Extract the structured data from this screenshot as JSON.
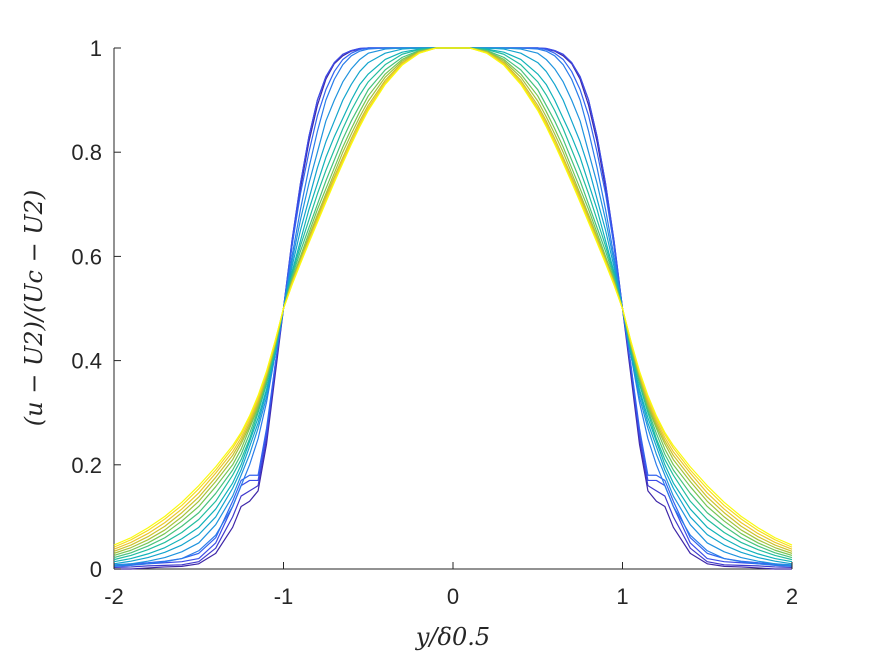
{
  "chart_data": {
    "type": "line",
    "title": "",
    "xlabel": "y/δ0.5",
    "ylabel": "(u − U2)/(Uc − U2)",
    "xlim": [
      -2,
      2
    ],
    "ylim": [
      0,
      1
    ],
    "xticks": [
      "-2",
      "-1",
      "0",
      "1",
      "2"
    ],
    "yticks": [
      "0",
      "0.2",
      "0.4",
      "0.6",
      "0.8",
      "1"
    ],
    "xtick_values": [
      -2,
      -1,
      0,
      1,
      2
    ],
    "ytick_values": [
      0,
      0.2,
      0.4,
      0.6,
      0.8,
      1
    ],
    "grid": false,
    "legend": "none",
    "colormap": "parula",
    "colormap_stops": [
      "#3e26a8",
      "#4145e4",
      "#2f6cf2",
      "#1f93de",
      "#0bafc1",
      "#28c097",
      "#75c554",
      "#c3c02b",
      "#f5c92d",
      "#f9fb0e"
    ],
    "x": [
      -2,
      -1.9,
      -1.8,
      -1.7,
      -1.6,
      -1.5,
      -1.4,
      -1.3,
      -1.25,
      -1.2,
      -1.15,
      -1.1,
      -1.05,
      -1,
      -0.95,
      -0.9,
      -0.85,
      -0.8,
      -0.75,
      -0.7,
      -0.65,
      -0.6,
      -0.55,
      -0.5,
      -0.4,
      -0.3,
      -0.2,
      -0.1,
      0,
      0.1,
      0.2,
      0.3,
      0.4,
      0.5,
      0.55,
      0.6,
      0.65,
      0.7,
      0.75,
      0.8,
      0.85,
      0.9,
      0.95,
      1,
      1.05,
      1.1,
      1.15,
      1.2,
      1.25,
      1.3,
      1.4,
      1.5,
      1.6,
      1.7,
      1.8,
      1.9,
      2
    ],
    "series": [
      {
        "values": [
          0,
          0,
          0.002,
          0.004,
          0.005,
          0.01,
          0.03,
          0.08,
          0.12,
          0.13,
          0.15,
          0.24,
          0.37,
          0.5,
          0.62,
          0.73,
          0.82,
          0.89,
          0.94,
          0.97,
          0.985,
          0.994,
          0.998,
          1,
          1,
          1,
          1,
          1,
          1,
          1,
          1,
          1,
          1,
          1,
          0.998,
          0.994,
          0.985,
          0.97,
          0.94,
          0.89,
          0.82,
          0.73,
          0.62,
          0.5,
          0.37,
          0.24,
          0.15,
          0.13,
          0.12,
          0.08,
          0.03,
          0.01,
          0.005,
          0.004,
          0.002,
          0,
          0
        ]
      },
      {
        "values": [
          0.003,
          0.004,
          0.006,
          0.007,
          0.008,
          0.014,
          0.04,
          0.1,
          0.14,
          0.15,
          0.16,
          0.25,
          0.38,
          0.5,
          0.63,
          0.74,
          0.83,
          0.9,
          0.945,
          0.972,
          0.988,
          0.995,
          0.999,
          1,
          1,
          1,
          1,
          1,
          1,
          1,
          1,
          1,
          1,
          1,
          0.999,
          0.995,
          0.988,
          0.972,
          0.945,
          0.9,
          0.83,
          0.74,
          0.63,
          0.5,
          0.38,
          0.25,
          0.16,
          0.15,
          0.14,
          0.1,
          0.04,
          0.014,
          0.008,
          0.007,
          0.006,
          0.004,
          0.003
        ]
      },
      {
        "values": [
          0.006,
          0.008,
          0.01,
          0.012,
          0.014,
          0.02,
          0.05,
          0.12,
          0.16,
          0.17,
          0.17,
          0.26,
          0.39,
          0.5,
          0.63,
          0.74,
          0.83,
          0.9,
          0.945,
          0.972,
          0.988,
          0.995,
          0.999,
          1,
          1,
          1,
          1,
          1,
          1,
          1,
          1,
          1,
          1,
          1,
          0.999,
          0.995,
          0.988,
          0.972,
          0.945,
          0.9,
          0.83,
          0.74,
          0.63,
          0.5,
          0.39,
          0.26,
          0.17,
          0.17,
          0.16,
          0.12,
          0.05,
          0.02,
          0.014,
          0.012,
          0.01,
          0.008,
          0.006
        ]
      },
      {
        "values": [
          0.008,
          0.01,
          0.012,
          0.015,
          0.02,
          0.03,
          0.06,
          0.13,
          0.17,
          0.18,
          0.18,
          0.27,
          0.39,
          0.5,
          0.62,
          0.72,
          0.8,
          0.87,
          0.92,
          0.955,
          0.978,
          0.99,
          0.997,
          1,
          1,
          1,
          1,
          1,
          1,
          1,
          1,
          1,
          1,
          1,
          0.997,
          0.99,
          0.978,
          0.955,
          0.92,
          0.87,
          0.8,
          0.72,
          0.62,
          0.5,
          0.39,
          0.27,
          0.18,
          0.18,
          0.17,
          0.13,
          0.06,
          0.03,
          0.02,
          0.015,
          0.012,
          0.01,
          0.008
        ]
      },
      {
        "values": [
          0.005,
          0.007,
          0.01,
          0.014,
          0.02,
          0.035,
          0.065,
          0.12,
          0.16,
          0.2,
          0.25,
          0.32,
          0.41,
          0.5,
          0.6,
          0.69,
          0.77,
          0.84,
          0.9,
          0.94,
          0.968,
          0.985,
          0.994,
          0.998,
          1,
          1,
          1,
          1,
          1,
          1,
          1,
          1,
          1,
          0.998,
          0.994,
          0.985,
          0.968,
          0.94,
          0.9,
          0.84,
          0.77,
          0.69,
          0.6,
          0.5,
          0.41,
          0.32,
          0.25,
          0.2,
          0.16,
          0.12,
          0.065,
          0.035,
          0.02,
          0.014,
          0.01,
          0.007,
          0.005
        ]
      },
      {
        "values": [
          0.007,
          0.01,
          0.015,
          0.022,
          0.033,
          0.05,
          0.085,
          0.14,
          0.18,
          0.22,
          0.27,
          0.33,
          0.41,
          0.5,
          0.59,
          0.67,
          0.74,
          0.8,
          0.86,
          0.9,
          0.935,
          0.96,
          0.978,
          0.99,
          0.998,
          1,
          1,
          1,
          1,
          1,
          1,
          1,
          0.998,
          0.99,
          0.978,
          0.96,
          0.935,
          0.9,
          0.86,
          0.8,
          0.74,
          0.67,
          0.59,
          0.5,
          0.41,
          0.33,
          0.27,
          0.22,
          0.18,
          0.14,
          0.085,
          0.05,
          0.033,
          0.022,
          0.015,
          0.01,
          0.007
        ]
      },
      {
        "values": [
          0.01,
          0.015,
          0.022,
          0.032,
          0.046,
          0.066,
          0.1,
          0.155,
          0.19,
          0.235,
          0.28,
          0.34,
          0.41,
          0.5,
          0.58,
          0.65,
          0.71,
          0.77,
          0.82,
          0.86,
          0.9,
          0.93,
          0.955,
          0.972,
          0.99,
          0.998,
          1,
          1,
          1,
          1,
          1,
          0.998,
          0.99,
          0.972,
          0.955,
          0.93,
          0.9,
          0.86,
          0.82,
          0.77,
          0.71,
          0.65,
          0.58,
          0.5,
          0.41,
          0.34,
          0.28,
          0.235,
          0.19,
          0.155,
          0.1,
          0.066,
          0.046,
          0.032,
          0.022,
          0.015,
          0.01
        ]
      },
      {
        "values": [
          0.014,
          0.02,
          0.029,
          0.041,
          0.058,
          0.08,
          0.115,
          0.165,
          0.2,
          0.245,
          0.29,
          0.345,
          0.415,
          0.5,
          0.57,
          0.63,
          0.69,
          0.74,
          0.79,
          0.83,
          0.865,
          0.9,
          0.93,
          0.95,
          0.978,
          0.992,
          0.998,
          1,
          1,
          1,
          0.998,
          0.992,
          0.978,
          0.95,
          0.93,
          0.9,
          0.865,
          0.83,
          0.79,
          0.74,
          0.69,
          0.63,
          0.57,
          0.5,
          0.415,
          0.345,
          0.29,
          0.245,
          0.2,
          0.165,
          0.115,
          0.08,
          0.058,
          0.041,
          0.029,
          0.02,
          0.014
        ]
      },
      {
        "values": [
          0.018,
          0.026,
          0.037,
          0.051,
          0.07,
          0.095,
          0.13,
          0.18,
          0.21,
          0.25,
          0.3,
          0.355,
          0.42,
          0.5,
          0.565,
          0.62,
          0.67,
          0.72,
          0.765,
          0.805,
          0.845,
          0.88,
          0.91,
          0.935,
          0.968,
          0.988,
          0.997,
          1,
          1,
          1,
          0.997,
          0.988,
          0.968,
          0.935,
          0.91,
          0.88,
          0.845,
          0.805,
          0.765,
          0.72,
          0.67,
          0.62,
          0.565,
          0.5,
          0.42,
          0.355,
          0.3,
          0.25,
          0.21,
          0.18,
          0.13,
          0.095,
          0.07,
          0.051,
          0.037,
          0.026,
          0.018
        ]
      },
      {
        "values": [
          0.022,
          0.031,
          0.044,
          0.06,
          0.082,
          0.108,
          0.145,
          0.19,
          0.22,
          0.26,
          0.305,
          0.36,
          0.425,
          0.5,
          0.56,
          0.61,
          0.655,
          0.7,
          0.745,
          0.785,
          0.825,
          0.86,
          0.89,
          0.92,
          0.958,
          0.982,
          0.995,
          1,
          1,
          1,
          0.995,
          0.982,
          0.958,
          0.92,
          0.89,
          0.86,
          0.825,
          0.785,
          0.745,
          0.7,
          0.655,
          0.61,
          0.56,
          0.5,
          0.425,
          0.36,
          0.305,
          0.26,
          0.22,
          0.19,
          0.145,
          0.108,
          0.082,
          0.06,
          0.044,
          0.031,
          0.022
        ]
      },
      {
        "values": [
          0.026,
          0.036,
          0.05,
          0.068,
          0.092,
          0.12,
          0.158,
          0.2,
          0.23,
          0.27,
          0.31,
          0.365,
          0.428,
          0.5,
          0.555,
          0.6,
          0.645,
          0.69,
          0.73,
          0.77,
          0.81,
          0.845,
          0.878,
          0.908,
          0.95,
          0.978,
          0.994,
          1,
          1,
          1,
          0.994,
          0.978,
          0.95,
          0.908,
          0.878,
          0.845,
          0.81,
          0.77,
          0.73,
          0.69,
          0.645,
          0.6,
          0.555,
          0.5,
          0.428,
          0.365,
          0.31,
          0.27,
          0.23,
          0.2,
          0.158,
          0.12,
          0.092,
          0.068,
          0.05,
          0.036,
          0.026
        ]
      },
      {
        "values": [
          0.03,
          0.041,
          0.056,
          0.075,
          0.1,
          0.13,
          0.168,
          0.21,
          0.24,
          0.275,
          0.315,
          0.37,
          0.43,
          0.5,
          0.552,
          0.595,
          0.638,
          0.68,
          0.72,
          0.76,
          0.8,
          0.835,
          0.868,
          0.898,
          0.944,
          0.975,
          0.993,
          1,
          1,
          1,
          0.993,
          0.975,
          0.944,
          0.898,
          0.868,
          0.835,
          0.8,
          0.76,
          0.72,
          0.68,
          0.638,
          0.595,
          0.552,
          0.5,
          0.43,
          0.37,
          0.315,
          0.275,
          0.24,
          0.21,
          0.168,
          0.13,
          0.1,
          0.075,
          0.056,
          0.041,
          0.03
        ]
      },
      {
        "values": [
          0.034,
          0.046,
          0.062,
          0.082,
          0.108,
          0.138,
          0.176,
          0.218,
          0.246,
          0.28,
          0.32,
          0.372,
          0.432,
          0.5,
          0.55,
          0.592,
          0.634,
          0.675,
          0.715,
          0.753,
          0.79,
          0.826,
          0.86,
          0.89,
          0.938,
          0.972,
          0.992,
          1,
          1,
          1,
          0.992,
          0.972,
          0.938,
          0.89,
          0.86,
          0.826,
          0.79,
          0.753,
          0.715,
          0.675,
          0.634,
          0.592,
          0.55,
          0.5,
          0.432,
          0.372,
          0.32,
          0.28,
          0.246,
          0.218,
          0.176,
          0.138,
          0.108,
          0.082,
          0.062,
          0.046,
          0.034
        ]
      },
      {
        "values": [
          0.038,
          0.051,
          0.068,
          0.089,
          0.115,
          0.146,
          0.184,
          0.225,
          0.252,
          0.285,
          0.325,
          0.375,
          0.434,
          0.5,
          0.548,
          0.59,
          0.63,
          0.67,
          0.71,
          0.748,
          0.785,
          0.82,
          0.855,
          0.885,
          0.934,
          0.97,
          0.991,
          1,
          1,
          1,
          0.991,
          0.97,
          0.934,
          0.885,
          0.855,
          0.82,
          0.785,
          0.748,
          0.71,
          0.67,
          0.63,
          0.59,
          0.548,
          0.5,
          0.434,
          0.375,
          0.325,
          0.285,
          0.252,
          0.225,
          0.184,
          0.146,
          0.115,
          0.089,
          0.068,
          0.051,
          0.038
        ]
      },
      {
        "values": [
          0.042,
          0.056,
          0.074,
          0.096,
          0.122,
          0.154,
          0.19,
          0.232,
          0.258,
          0.29,
          0.33,
          0.378,
          0.436,
          0.5,
          0.546,
          0.588,
          0.628,
          0.667,
          0.706,
          0.744,
          0.781,
          0.817,
          0.851,
          0.882,
          0.932,
          0.968,
          0.99,
          1,
          1,
          1,
          0.99,
          0.968,
          0.932,
          0.882,
          0.851,
          0.817,
          0.781,
          0.744,
          0.706,
          0.667,
          0.628,
          0.588,
          0.546,
          0.5,
          0.436,
          0.378,
          0.33,
          0.29,
          0.258,
          0.232,
          0.19,
          0.154,
          0.122,
          0.096,
          0.074,
          0.056,
          0.042
        ]
      },
      {
        "values": [
          0.046,
          0.06,
          0.079,
          0.101,
          0.128,
          0.16,
          0.196,
          0.237,
          0.262,
          0.294,
          0.333,
          0.38,
          0.437,
          0.5,
          0.545,
          0.586,
          0.626,
          0.665,
          0.704,
          0.742,
          0.779,
          0.815,
          0.849,
          0.88,
          0.93,
          0.967,
          0.99,
          1,
          1,
          1,
          0.99,
          0.967,
          0.93,
          0.88,
          0.849,
          0.815,
          0.779,
          0.742,
          0.704,
          0.665,
          0.626,
          0.586,
          0.545,
          0.5,
          0.437,
          0.38,
          0.333,
          0.294,
          0.262,
          0.237,
          0.196,
          0.16,
          0.128,
          0.101,
          0.079,
          0.06,
          0.046
        ]
      }
    ]
  }
}
